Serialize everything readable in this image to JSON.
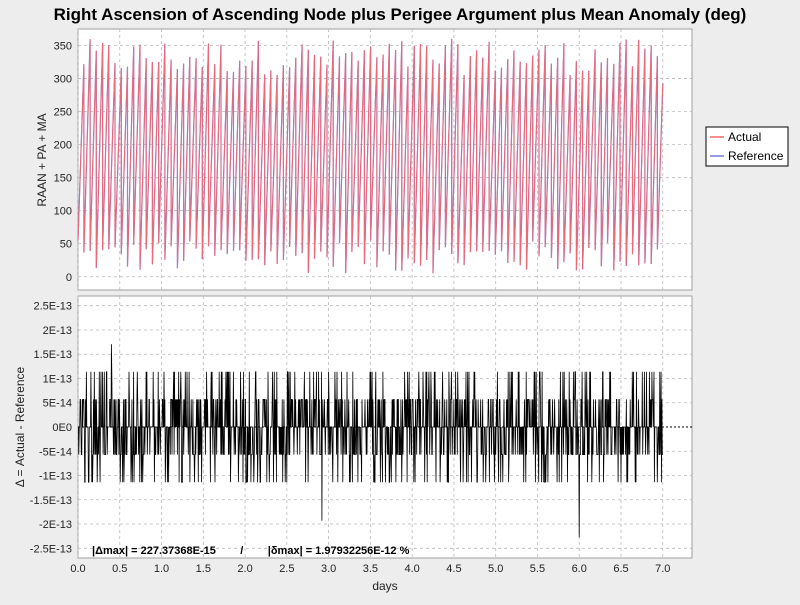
{
  "chart_data": [
    {
      "type": "line",
      "title": "Right Ascension of Ascending Node plus Perigee Argument plus Mean Anomaly (deg)",
      "ylabel": "RAAN + PA + MA",
      "xlim": [
        0,
        7.35
      ],
      "ylim": [
        -20,
        375
      ],
      "yticks": [
        0,
        50,
        100,
        150,
        200,
        250,
        300,
        350
      ],
      "ytick_labels": [
        "0",
        "50",
        "100",
        "150",
        "200",
        "250",
        "300",
        "350"
      ],
      "grid": true,
      "legend_position": "right",
      "series_shape": "sawtooth 0–360 deg wrapping, ~13.4 rev/day, local peaks/troughs vary",
      "rev_per_day": 13.4,
      "x_start": 0,
      "x_end": 7.0,
      "series": [
        {
          "name": "Actual",
          "color": "#ff6666"
        },
        {
          "name": "Reference",
          "color": "#7777dd"
        }
      ]
    },
    {
      "type": "line",
      "ylabel": "Δ = Actual - Reference",
      "xlabel": "days",
      "xlim": [
        0,
        7.35
      ],
      "ylim": [
        -2.7e-13,
        2.7e-13
      ],
      "yticks": [
        -2.5e-13,
        -2e-13,
        -1.5e-13,
        -1e-13,
        -5e-14,
        0,
        5e-14,
        1e-13,
        1.5e-13,
        2e-13,
        2.5e-13
      ],
      "ytick_labels": [
        "-2.5E-13",
        "-2E-13",
        "-1.5E-13",
        "-1E-13",
        "-5E-14",
        "0E0",
        "5E-14",
        "1E-13",
        "1.5E-13",
        "2E-13",
        "2.5E-13"
      ],
      "xticks": [
        0,
        0.5,
        1,
        1.5,
        2,
        2.5,
        3,
        3.5,
        4,
        4.5,
        5,
        5.5,
        6,
        6.5,
        7
      ],
      "xtick_labels": [
        "0.0",
        "0.5",
        "1.0",
        "1.5",
        "2.0",
        "2.5",
        "3.0",
        "3.5",
        "4.0",
        "4.5",
        "5.0",
        "5.5",
        "6.0",
        "6.5",
        "7.0"
      ],
      "grid": true,
      "series_shape": "noise, discrete levels ±5.7E-14 and ±1.14E-13, extremes +1.7E-13 at 0.4 d and -2.3E-13 at 6.0 d",
      "zero_line": "dotted",
      "series": [
        {
          "name": "Δ",
          "color": "#000000"
        }
      ],
      "annotation": "|Δmax| = 227.37368E-15        /        |δmax| = 1.97932256E-12 %"
    }
  ]
}
